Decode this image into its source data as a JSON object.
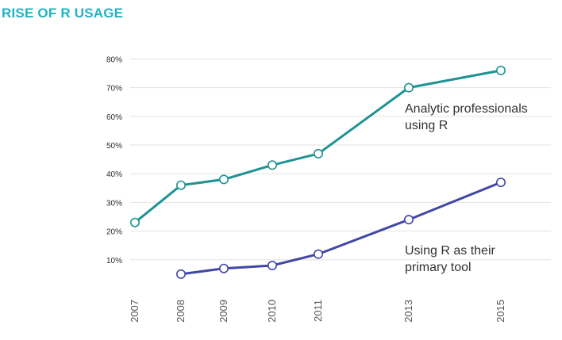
{
  "title": "RISE OF R USAGE",
  "chart_data": {
    "type": "line",
    "title": "RISE OF R USAGE",
    "xlabel": "",
    "ylabel": "",
    "x": [
      2007,
      2008,
      2009,
      2010,
      2011,
      2013,
      2015
    ],
    "x_tick_labels": [
      "2007",
      "2008",
      "2009",
      "2010",
      "2011",
      "2013",
      "2015"
    ],
    "y_tick_labels": [
      "10%",
      "20%",
      "30%",
      "40%",
      "50%",
      "60%",
      "70%",
      "80%"
    ],
    "ylim": [
      0,
      80
    ],
    "grid": true,
    "legend": "inline-annotations",
    "series": [
      {
        "name": "Analytic professionals using R",
        "label_lines": [
          "Analytic professionals",
          "using R"
        ],
        "color": "#1e9393",
        "x": [
          2007,
          2008,
          2009,
          2010,
          2011,
          2013,
          2015
        ],
        "values": [
          23,
          36,
          38,
          43,
          47,
          70,
          76
        ]
      },
      {
        "name": "Using R as their primary tool",
        "label_lines": [
          "Using R as their",
          "primary tool"
        ],
        "color": "#4147a8",
        "x": [
          2008,
          2009,
          2010,
          2011,
          2013,
          2015
        ],
        "values": [
          5,
          7,
          8,
          12,
          24,
          37
        ]
      }
    ]
  }
}
